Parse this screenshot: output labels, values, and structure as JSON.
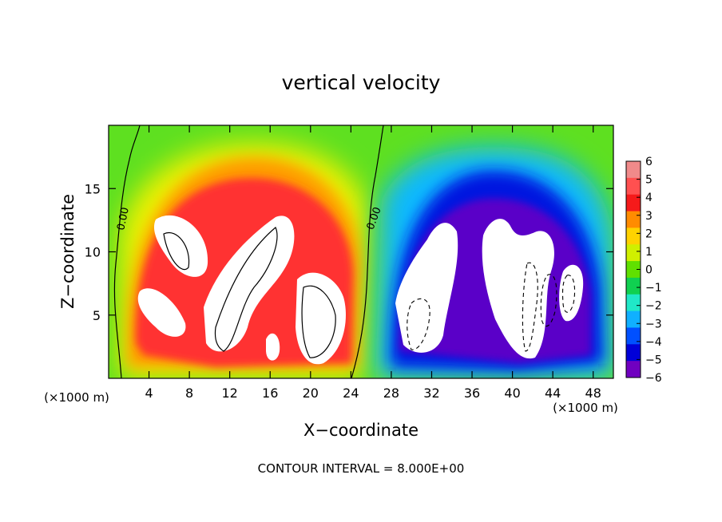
{
  "chart_data": {
    "type": "heatmap",
    "title": "vertical velocity",
    "xlabel": "X−coordinate",
    "ylabel": "Z−coordinate",
    "x_unit_left": "(×1000 m)",
    "x_unit_right": "(×1000 m)",
    "footer": "CONTOUR INTERVAL = 8.000E+00",
    "xlim": [
      0,
      50
    ],
    "ylim": [
      0,
      20
    ],
    "x_ticks": [
      4,
      8,
      12,
      16,
      20,
      24,
      28,
      32,
      36,
      40,
      44,
      48
    ],
    "y_ticks": [
      5,
      10,
      15
    ],
    "contour_label": "0.00",
    "colorbar": {
      "range": [
        -6,
        6
      ],
      "tick_values": [
        6,
        5,
        4,
        3,
        2,
        1,
        0,
        -1,
        -2,
        -3,
        -4,
        -5,
        -6
      ],
      "tick_labels": [
        "6",
        "5",
        "4",
        "3",
        "2",
        "1",
        "0",
        "−1",
        "−2",
        "−3",
        "−4",
        "−5",
        "−6"
      ],
      "colors": [
        "#f08a8a",
        "#ff5050",
        "#f51a1a",
        "#ff8c00",
        "#ffd200",
        "#d0f000",
        "#60e000",
        "#10d050",
        "#20e8c8",
        "#10b0ff",
        "#0050ff",
        "#0000d8",
        "#7000c0"
      ]
    },
    "updraft_cells": [
      {
        "x": 7.5,
        "z": 10.0,
        "w": 9
      },
      {
        "x": 5.5,
        "z": 6.0,
        "w": 8
      },
      {
        "x": 13.5,
        "z": 9.5,
        "w": 9
      },
      {
        "x": 20.0,
        "z": 6.0,
        "w": 9
      },
      {
        "x": 16.2,
        "z": 2.0,
        "w": 7
      }
    ],
    "downdraft_cells": [
      {
        "x": 31.0,
        "z": 7.0,
        "w": -9
      },
      {
        "x": 40.0,
        "z": 8.0,
        "w": -9
      },
      {
        "x": 46.0,
        "z": 7.0,
        "w": -8
      }
    ]
  }
}
